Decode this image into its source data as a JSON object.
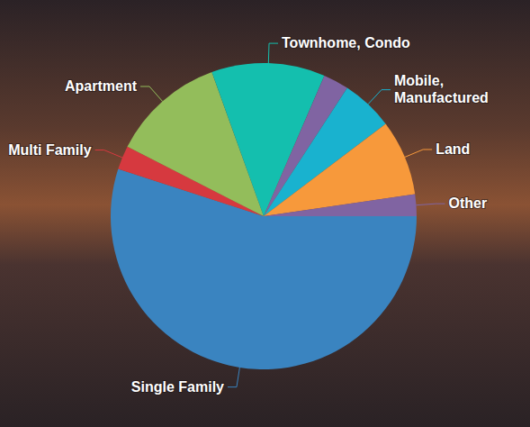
{
  "chart_data": {
    "type": "pie",
    "categories": [
      "Single Family",
      "Multi Family",
      "Apartment",
      "Townhome, Condo",
      null,
      "Mobile, Manufactured",
      "Land",
      "Other"
    ],
    "values": [
      55,
      2.5,
      12,
      12,
      2.7,
      5.5,
      8,
      2.3
    ],
    "colors": [
      "#3a84c0",
      "#d6393f",
      "#93bd5b",
      "#14bfae",
      "#8064a2",
      "#19b2cf",
      "#f7993b",
      "#8064a2"
    ]
  }
}
